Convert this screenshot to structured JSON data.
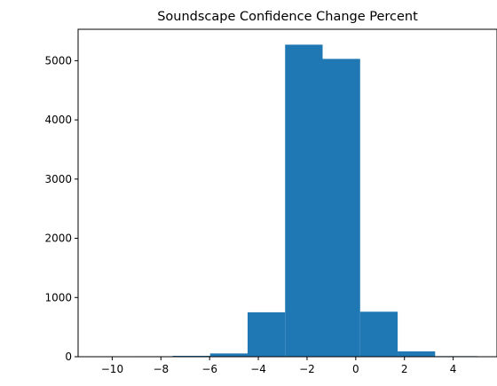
{
  "chart_data": {
    "type": "bar",
    "title": "Soundscape Confidence Change Percent",
    "xlabel": "",
    "ylabel": "",
    "xlim": [
      -11.4,
      5.8
    ],
    "ylim": [
      0,
      5530
    ],
    "bin_edges": [
      -10.6,
      -9.06,
      -7.52,
      -5.98,
      -4.44,
      -2.9,
      -1.36,
      0.18,
      1.72,
      3.26,
      5.0
    ],
    "values": [
      1,
      8,
      15,
      55,
      750,
      5270,
      5030,
      760,
      90,
      10
    ],
    "xticks": [
      -10,
      -8,
      -6,
      -4,
      -2,
      0,
      2,
      4
    ],
    "yticks": [
      0,
      1000,
      2000,
      3000,
      4000,
      5000
    ],
    "bar_color": "#1f77b4",
    "grid": false
  }
}
